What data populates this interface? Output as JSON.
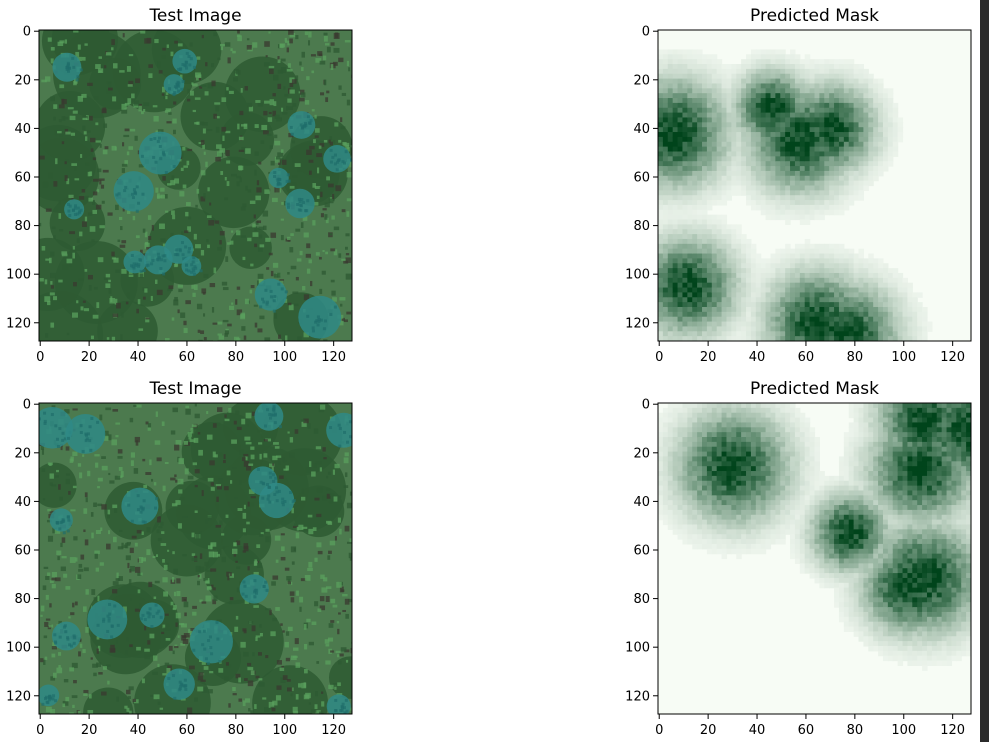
{
  "chart_data": [
    {
      "type": "image",
      "title": "Test Image",
      "xlim": [
        0,
        128
      ],
      "ylim": [
        128,
        0
      ],
      "xticks": [
        0,
        20,
        40,
        60,
        80,
        100,
        120
      ],
      "yticks": [
        0,
        20,
        40,
        60,
        80,
        100,
        120
      ],
      "colormap": "rgb",
      "palette": {
        "base": "#4c7a4e",
        "canopy": "#2e5a33",
        "leaf": "#5aa05e",
        "teal": "#2f8a86",
        "shadow": "#3a3a30"
      }
    },
    {
      "type": "heatmap",
      "title": "Predicted Mask",
      "xlim": [
        0,
        128
      ],
      "ylim": [
        128,
        0
      ],
      "xticks": [
        0,
        20,
        40,
        60,
        80,
        100,
        120
      ],
      "yticks": [
        0,
        20,
        40,
        60,
        80,
        100,
        120
      ],
      "colormap": "Greens",
      "palette": {
        "low": "#f7fcf5",
        "high": "#00441b"
      }
    },
    {
      "type": "image",
      "title": "Test Image",
      "xlim": [
        0,
        128
      ],
      "ylim": [
        128,
        0
      ],
      "xticks": [
        0,
        20,
        40,
        60,
        80,
        100,
        120
      ],
      "yticks": [
        0,
        20,
        40,
        60,
        80,
        100,
        120
      ],
      "colormap": "rgb",
      "palette": {
        "base": "#4c7a4e",
        "canopy": "#2e5a33",
        "leaf": "#5aa05e",
        "teal": "#2f8a86",
        "shadow": "#3a3a30"
      }
    },
    {
      "type": "heatmap",
      "title": "Predicted Mask",
      "xlim": [
        0,
        128
      ],
      "ylim": [
        128,
        0
      ],
      "xticks": [
        0,
        20,
        40,
        60,
        80,
        100,
        120
      ],
      "yticks": [
        0,
        20,
        40,
        60,
        80,
        100,
        120
      ],
      "colormap": "Greens",
      "palette": {
        "low": "#f7fcf5",
        "high": "#00441b"
      }
    }
  ]
}
